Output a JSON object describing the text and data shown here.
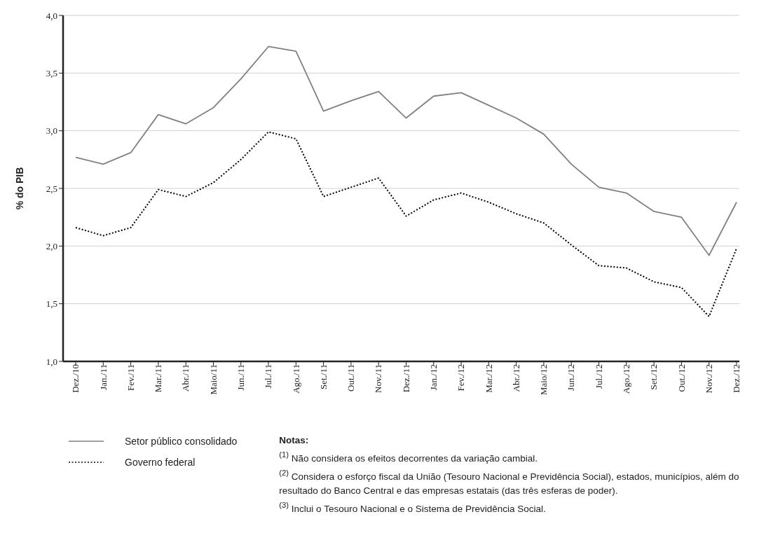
{
  "chart_data": {
    "type": "line",
    "ylabel": "% do PIB",
    "categories": [
      "Dez./10",
      "Jan./11",
      "Fev./11",
      "Mar./11",
      "Abr./11",
      "Maio/11",
      "Jun./11",
      "Jul./11",
      "Ago./11",
      "Set./11",
      "Out./11",
      "Nov./11",
      "Dez./11",
      "Jan./12",
      "Fev./12",
      "Mar./12",
      "Abr./12",
      "Maio/12",
      "Jun./12",
      "Jul./12",
      "Ago./12",
      "Set./12",
      "Out./12",
      "Nov./12",
      "Dez./12"
    ],
    "series": [
      {
        "name": "Setor público consolidado",
        "color": "#808080",
        "line_style": "solid",
        "values": [
          2.77,
          2.71,
          2.81,
          3.14,
          3.06,
          3.2,
          3.45,
          3.73,
          3.69,
          3.17,
          3.26,
          3.34,
          3.11,
          3.3,
          3.33,
          3.22,
          3.11,
          2.97,
          2.71,
          2.51,
          2.46,
          2.3,
          2.25,
          1.92,
          2.38
        ]
      },
      {
        "name": "Governo federal",
        "color": "#000000",
        "line_style": "dotted",
        "values": [
          2.16,
          2.09,
          2.16,
          2.49,
          2.43,
          2.55,
          2.75,
          2.99,
          2.93,
          2.43,
          2.51,
          2.59,
          2.26,
          2.4,
          2.46,
          2.38,
          2.28,
          2.2,
          2.01,
          1.83,
          1.81,
          1.69,
          1.64,
          1.39,
          1.98
        ]
      }
    ],
    "ylim": [
      1,
      4
    ],
    "yticks": [
      {
        "value": 1,
        "label": "1,0"
      },
      {
        "value": 1.5,
        "label": "1,5"
      },
      {
        "value": 2,
        "label": "2,0"
      },
      {
        "value": 2.5,
        "label": "2,5"
      },
      {
        "value": 3,
        "label": "3,0"
      },
      {
        "value": 3.5,
        "label": "3,5"
      },
      {
        "value": 4,
        "label": "4,0"
      }
    ],
    "grid": "y",
    "legend": "bottom left",
    "marker": "none",
    "annotations": [
      "Notas:",
      "$^{(1)}$ Não considera os efeitos decorrentes da variação cambial.",
      "$^{(2)}$ Considera o esforço fiscal da União (Tesouro Nacional e Previdência Social), estados, municípios, além do resultado do Banco Central e das empresas estatais (das três esferas de poder).",
      "$^{(3)}$ Inclui o Tesouro Nacional e o Sistema de Previdência Social."
    ]
  }
}
